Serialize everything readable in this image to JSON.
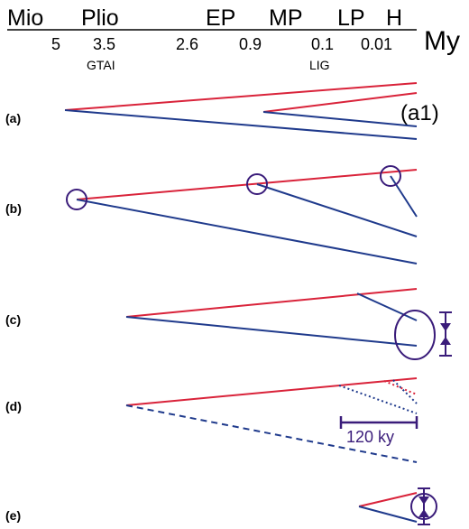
{
  "header": {
    "epochs": [
      "Mio",
      "Plio",
      "EP",
      "MP",
      "LP",
      "H"
    ],
    "ages": [
      "5",
      "3.5",
      "2.6",
      "0.9",
      "0.1",
      "0.01"
    ],
    "events": [
      "GTAI",
      "LIG"
    ],
    "unit": "My"
  },
  "panels": {
    "a": {
      "label": "(a)",
      "sublabel": "(a1)"
    },
    "b": {
      "label": "(b)"
    },
    "c": {
      "label": "(c)"
    },
    "d": {
      "label": "(d)",
      "scale_label": "120 ky"
    },
    "e": {
      "label": "(e)"
    }
  },
  "colors": {
    "red": "#d9233a",
    "blue": "#1f3a8c",
    "purple": "#3a1c7a"
  }
}
